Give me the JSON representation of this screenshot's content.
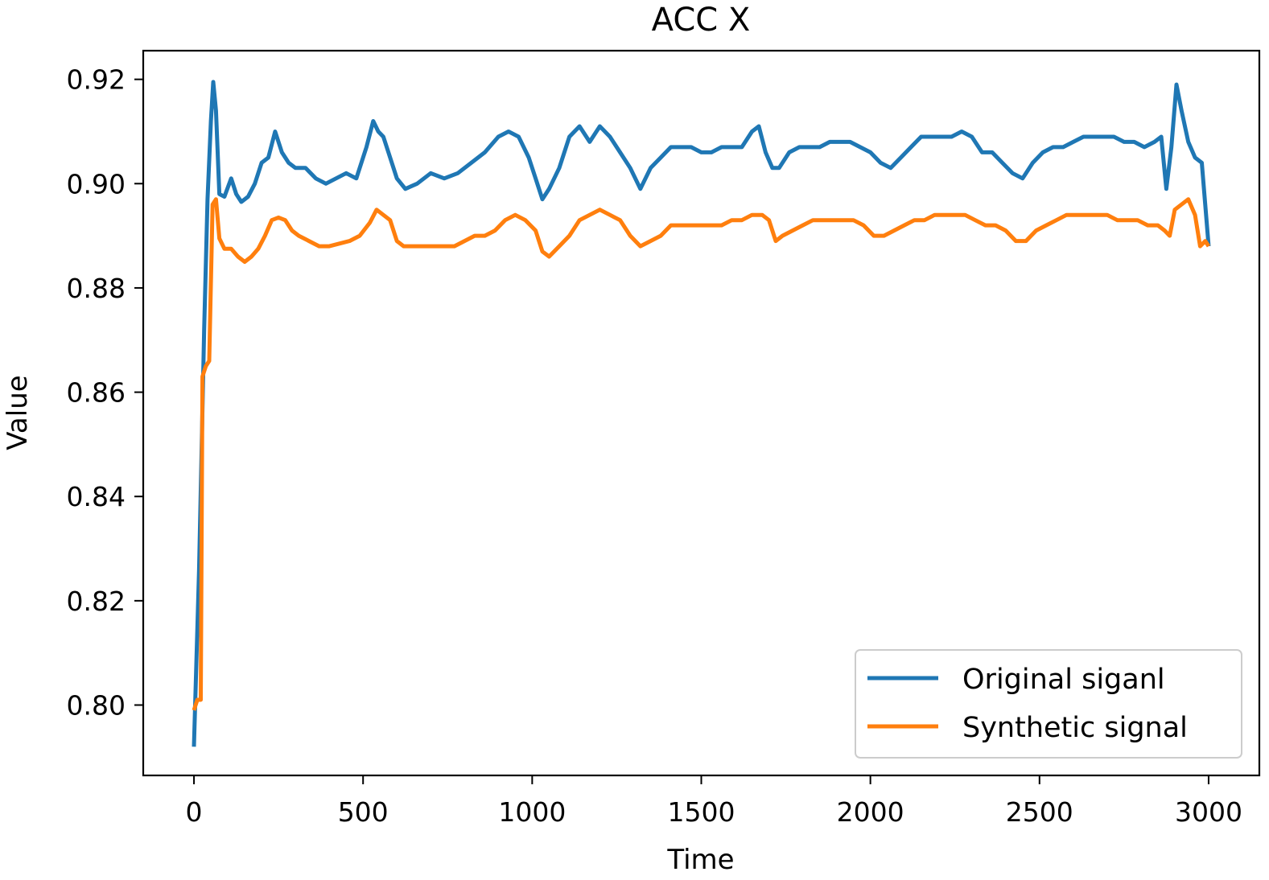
{
  "chart_data": {
    "type": "line",
    "title": "ACC X",
    "xlabel": "Time",
    "ylabel": "Value",
    "xlim": [
      -150,
      3150
    ],
    "ylim": [
      0.7865,
      0.9255
    ],
    "x_ticks": [
      0,
      500,
      1000,
      1500,
      2000,
      2500,
      3000
    ],
    "x_tick_labels": [
      "0",
      "500",
      "1000",
      "1500",
      "2000",
      "2500",
      "3000"
    ],
    "y_ticks": [
      0.8,
      0.82,
      0.84,
      0.86,
      0.88,
      0.9,
      0.92
    ],
    "y_tick_labels": [
      "0.80",
      "0.82",
      "0.84",
      "0.86",
      "0.88",
      "0.90",
      "0.92"
    ],
    "grid": false,
    "legend_position": "lower-right",
    "series": [
      {
        "name": "Original siganl",
        "color": "#1f77b4",
        "points": [
          [
            0,
            0.792
          ],
          [
            15,
            0.826
          ],
          [
            30,
            0.872
          ],
          [
            40,
            0.897
          ],
          [
            50,
            0.912
          ],
          [
            57,
            0.9195
          ],
          [
            65,
            0.914
          ],
          [
            75,
            0.898
          ],
          [
            90,
            0.8975
          ],
          [
            110,
            0.901
          ],
          [
            125,
            0.898
          ],
          [
            140,
            0.8965
          ],
          [
            160,
            0.8975
          ],
          [
            180,
            0.9
          ],
          [
            200,
            0.904
          ],
          [
            220,
            0.905
          ],
          [
            240,
            0.91
          ],
          [
            260,
            0.906
          ],
          [
            280,
            0.904
          ],
          [
            300,
            0.903
          ],
          [
            330,
            0.903
          ],
          [
            360,
            0.901
          ],
          [
            390,
            0.9
          ],
          [
            420,
            0.901
          ],
          [
            450,
            0.902
          ],
          [
            480,
            0.901
          ],
          [
            510,
            0.907
          ],
          [
            530,
            0.912
          ],
          [
            545,
            0.91
          ],
          [
            560,
            0.909
          ],
          [
            575,
            0.906
          ],
          [
            600,
            0.901
          ],
          [
            625,
            0.899
          ],
          [
            660,
            0.9
          ],
          [
            700,
            0.902
          ],
          [
            740,
            0.901
          ],
          [
            780,
            0.902
          ],
          [
            820,
            0.904
          ],
          [
            860,
            0.906
          ],
          [
            900,
            0.909
          ],
          [
            930,
            0.91
          ],
          [
            960,
            0.909
          ],
          [
            990,
            0.905
          ],
          [
            1010,
            0.901
          ],
          [
            1030,
            0.897
          ],
          [
            1050,
            0.899
          ],
          [
            1080,
            0.903
          ],
          [
            1110,
            0.909
          ],
          [
            1140,
            0.911
          ],
          [
            1170,
            0.908
          ],
          [
            1200,
            0.911
          ],
          [
            1230,
            0.909
          ],
          [
            1260,
            0.906
          ],
          [
            1290,
            0.903
          ],
          [
            1320,
            0.899
          ],
          [
            1350,
            0.903
          ],
          [
            1380,
            0.905
          ],
          [
            1410,
            0.907
          ],
          [
            1440,
            0.907
          ],
          [
            1470,
            0.907
          ],
          [
            1500,
            0.906
          ],
          [
            1530,
            0.906
          ],
          [
            1560,
            0.907
          ],
          [
            1590,
            0.907
          ],
          [
            1620,
            0.907
          ],
          [
            1650,
            0.91
          ],
          [
            1670,
            0.911
          ],
          [
            1690,
            0.906
          ],
          [
            1710,
            0.903
          ],
          [
            1730,
            0.903
          ],
          [
            1760,
            0.906
          ],
          [
            1790,
            0.907
          ],
          [
            1820,
            0.907
          ],
          [
            1850,
            0.907
          ],
          [
            1880,
            0.908
          ],
          [
            1910,
            0.908
          ],
          [
            1940,
            0.908
          ],
          [
            1970,
            0.907
          ],
          [
            2000,
            0.906
          ],
          [
            2030,
            0.904
          ],
          [
            2060,
            0.903
          ],
          [
            2090,
            0.905
          ],
          [
            2120,
            0.907
          ],
          [
            2150,
            0.909
          ],
          [
            2180,
            0.909
          ],
          [
            2210,
            0.909
          ],
          [
            2240,
            0.909
          ],
          [
            2270,
            0.91
          ],
          [
            2300,
            0.909
          ],
          [
            2330,
            0.906
          ],
          [
            2360,
            0.906
          ],
          [
            2390,
            0.904
          ],
          [
            2420,
            0.902
          ],
          [
            2450,
            0.901
          ],
          [
            2480,
            0.904
          ],
          [
            2510,
            0.906
          ],
          [
            2540,
            0.907
          ],
          [
            2570,
            0.907
          ],
          [
            2600,
            0.908
          ],
          [
            2630,
            0.909
          ],
          [
            2660,
            0.909
          ],
          [
            2690,
            0.909
          ],
          [
            2720,
            0.909
          ],
          [
            2750,
            0.908
          ],
          [
            2780,
            0.908
          ],
          [
            2810,
            0.907
          ],
          [
            2840,
            0.908
          ],
          [
            2860,
            0.909
          ],
          [
            2875,
            0.899
          ],
          [
            2890,
            0.907
          ],
          [
            2905,
            0.919
          ],
          [
            2920,
            0.914
          ],
          [
            2940,
            0.908
          ],
          [
            2960,
            0.905
          ],
          [
            2980,
            0.904
          ],
          [
            3000,
            0.888
          ]
        ]
      },
      {
        "name": "Synthetic signal",
        "color": "#ff7f0e",
        "points": [
          [
            0,
            0.799
          ],
          [
            10,
            0.801
          ],
          [
            20,
            0.801
          ],
          [
            25,
            0.863
          ],
          [
            35,
            0.865
          ],
          [
            45,
            0.866
          ],
          [
            55,
            0.896
          ],
          [
            65,
            0.897
          ],
          [
            75,
            0.8895
          ],
          [
            90,
            0.8875
          ],
          [
            110,
            0.8875
          ],
          [
            130,
            0.886
          ],
          [
            150,
            0.885
          ],
          [
            170,
            0.886
          ],
          [
            190,
            0.8875
          ],
          [
            210,
            0.89
          ],
          [
            230,
            0.893
          ],
          [
            250,
            0.8935
          ],
          [
            270,
            0.893
          ],
          [
            290,
            0.891
          ],
          [
            310,
            0.89
          ],
          [
            340,
            0.889
          ],
          [
            370,
            0.888
          ],
          [
            400,
            0.888
          ],
          [
            430,
            0.8885
          ],
          [
            460,
            0.889
          ],
          [
            490,
            0.89
          ],
          [
            520,
            0.8925
          ],
          [
            540,
            0.895
          ],
          [
            560,
            0.894
          ],
          [
            580,
            0.893
          ],
          [
            600,
            0.889
          ],
          [
            620,
            0.888
          ],
          [
            650,
            0.888
          ],
          [
            680,
            0.888
          ],
          [
            710,
            0.888
          ],
          [
            740,
            0.888
          ],
          [
            770,
            0.888
          ],
          [
            800,
            0.889
          ],
          [
            830,
            0.89
          ],
          [
            860,
            0.89
          ],
          [
            890,
            0.891
          ],
          [
            920,
            0.893
          ],
          [
            950,
            0.894
          ],
          [
            980,
            0.893
          ],
          [
            1010,
            0.891
          ],
          [
            1030,
            0.887
          ],
          [
            1050,
            0.886
          ],
          [
            1080,
            0.888
          ],
          [
            1110,
            0.89
          ],
          [
            1140,
            0.893
          ],
          [
            1170,
            0.894
          ],
          [
            1200,
            0.895
          ],
          [
            1230,
            0.894
          ],
          [
            1260,
            0.893
          ],
          [
            1290,
            0.89
          ],
          [
            1320,
            0.888
          ],
          [
            1350,
            0.889
          ],
          [
            1380,
            0.89
          ],
          [
            1410,
            0.892
          ],
          [
            1440,
            0.892
          ],
          [
            1470,
            0.892
          ],
          [
            1500,
            0.892
          ],
          [
            1530,
            0.892
          ],
          [
            1560,
            0.892
          ],
          [
            1590,
            0.893
          ],
          [
            1620,
            0.893
          ],
          [
            1650,
            0.894
          ],
          [
            1680,
            0.894
          ],
          [
            1700,
            0.893
          ],
          [
            1720,
            0.889
          ],
          [
            1740,
            0.89
          ],
          [
            1770,
            0.891
          ],
          [
            1800,
            0.892
          ],
          [
            1830,
            0.893
          ],
          [
            1860,
            0.893
          ],
          [
            1890,
            0.893
          ],
          [
            1920,
            0.893
          ],
          [
            1950,
            0.893
          ],
          [
            1980,
            0.892
          ],
          [
            2010,
            0.89
          ],
          [
            2040,
            0.89
          ],
          [
            2070,
            0.891
          ],
          [
            2100,
            0.892
          ],
          [
            2130,
            0.893
          ],
          [
            2160,
            0.893
          ],
          [
            2190,
            0.894
          ],
          [
            2220,
            0.894
          ],
          [
            2250,
            0.894
          ],
          [
            2280,
            0.894
          ],
          [
            2310,
            0.893
          ],
          [
            2340,
            0.892
          ],
          [
            2370,
            0.892
          ],
          [
            2400,
            0.891
          ],
          [
            2430,
            0.889
          ],
          [
            2460,
            0.889
          ],
          [
            2490,
            0.891
          ],
          [
            2520,
            0.892
          ],
          [
            2550,
            0.893
          ],
          [
            2580,
            0.894
          ],
          [
            2610,
            0.894
          ],
          [
            2640,
            0.894
          ],
          [
            2670,
            0.894
          ],
          [
            2700,
            0.894
          ],
          [
            2730,
            0.893
          ],
          [
            2760,
            0.893
          ],
          [
            2790,
            0.893
          ],
          [
            2820,
            0.892
          ],
          [
            2850,
            0.892
          ],
          [
            2870,
            0.891
          ],
          [
            2885,
            0.89
          ],
          [
            2900,
            0.895
          ],
          [
            2920,
            0.896
          ],
          [
            2940,
            0.897
          ],
          [
            2960,
            0.894
          ],
          [
            2975,
            0.888
          ],
          [
            2990,
            0.889
          ],
          [
            3000,
            0.888
          ]
        ]
      }
    ]
  }
}
